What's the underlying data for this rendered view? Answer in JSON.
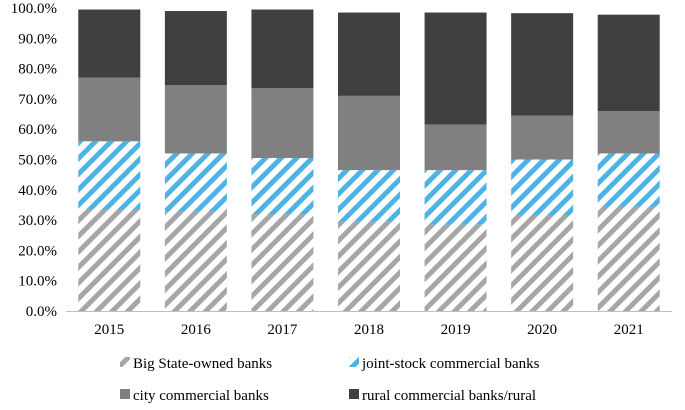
{
  "chart_data": {
    "type": "bar",
    "stacked": true,
    "categories": [
      "2015",
      "2016",
      "2017",
      "2018",
      "2019",
      "2020",
      "2021"
    ],
    "series": [
      {
        "name": "Big State-owned banks",
        "values": [
          33.5,
          33.0,
          32.0,
          29.5,
          28.5,
          31.5,
          34.5
        ],
        "color": "#a6a6a6",
        "pattern": "diagonal-hatch"
      },
      {
        "name": "joint-stock commercial banks",
        "values": [
          22.5,
          19.0,
          18.5,
          17.0,
          18.0,
          18.5,
          17.5
        ],
        "color": "#4db3e6",
        "pattern": "diagonal-hatch"
      },
      {
        "name": "city commercial banks",
        "values": [
          21.0,
          22.5,
          23.0,
          24.5,
          15.0,
          14.5,
          14.0
        ],
        "color": "#808080",
        "pattern": "solid"
      },
      {
        "name": "rural commercial banks/rural",
        "values": [
          22.5,
          24.5,
          26.0,
          27.5,
          37.0,
          33.8,
          31.8
        ],
        "color": "#404040",
        "pattern": "solid"
      }
    ],
    "ylim": [
      0,
      100
    ],
    "yticks": [
      "0.0%",
      "10.0%",
      "20.0%",
      "30.0%",
      "40.0%",
      "50.0%",
      "60.0%",
      "70.0%",
      "80.0%",
      "90.0%",
      "100.0%"
    ],
    "title": "",
    "xlabel": "",
    "ylabel": "",
    "grid": false,
    "legend_position": "bottom"
  }
}
